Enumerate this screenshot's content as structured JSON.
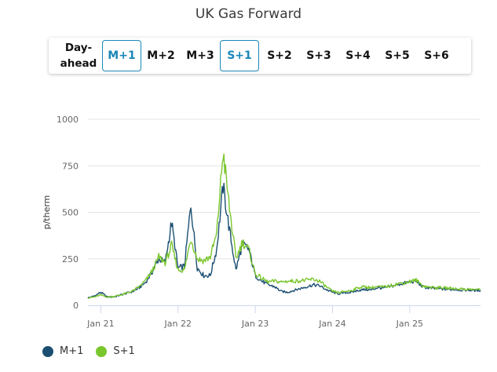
{
  "title": "UK Gas Forward",
  "tabs": [
    {
      "id": "dayahead",
      "label": "Day-\nahead",
      "active": false
    },
    {
      "id": "m1",
      "label": "M+1",
      "active": true
    },
    {
      "id": "m2",
      "label": "M+2",
      "active": false
    },
    {
      "id": "m3",
      "label": "M+3",
      "active": false
    },
    {
      "id": "s1",
      "label": "S+1",
      "active": true
    },
    {
      "id": "s2",
      "label": "S+2",
      "active": false
    },
    {
      "id": "s3",
      "label": "S+3",
      "active": false
    },
    {
      "id": "s4",
      "label": "S+4",
      "active": false
    },
    {
      "id": "s5",
      "label": "S+5",
      "active": false
    },
    {
      "id": "s6",
      "label": "S+6",
      "active": false
    }
  ],
  "legend": [
    {
      "name": "M+1",
      "color": "#1b4f72"
    },
    {
      "name": "S+1",
      "color": "#7ac62d"
    }
  ],
  "chart_data": {
    "type": "line",
    "title": "UK Gas Forward",
    "ylabel": "p/therm",
    "xlabel": "",
    "ylim": [
      0,
      1000
    ],
    "yticks": [
      0,
      250,
      500,
      750,
      1000
    ],
    "xticks": [
      "Jan 21",
      "Jan 22",
      "Jan 23",
      "Jan 24",
      "Jan 25"
    ],
    "xrange": [
      "2020-11",
      "2025-12"
    ],
    "grid": true,
    "legend_position": "bottom-left",
    "series": [
      {
        "name": "M+1",
        "color": "#1b4f72",
        "points": [
          [
            "2020-11",
            40
          ],
          [
            "2020-12",
            50
          ],
          [
            "2021-01",
            70
          ],
          [
            "2021-02",
            45
          ],
          [
            "2021-03",
            45
          ],
          [
            "2021-04",
            55
          ],
          [
            "2021-05",
            65
          ],
          [
            "2021-06",
            75
          ],
          [
            "2021-07",
            95
          ],
          [
            "2021-08",
            125
          ],
          [
            "2021-09",
            180
          ],
          [
            "2021-10",
            250
          ],
          [
            "2021-11",
            230
          ],
          [
            "2021-12",
            445
          ],
          [
            "2022-01",
            200
          ],
          [
            "2022-02",
            210
          ],
          [
            "2022-03",
            540
          ],
          [
            "2022-04",
            200
          ],
          [
            "2022-05",
            160
          ],
          [
            "2022-06",
            160
          ],
          [
            "2022-07",
            300
          ],
          [
            "2022-08",
            640
          ],
          [
            "2022-09",
            400
          ],
          [
            "2022-10",
            190
          ],
          [
            "2022-11",
            330
          ],
          [
            "2022-12",
            300
          ],
          [
            "2023-01",
            160
          ],
          [
            "2023-02",
            130
          ],
          [
            "2023-03",
            110
          ],
          [
            "2023-04",
            100
          ],
          [
            "2023-05",
            75
          ],
          [
            "2023-06",
            70
          ],
          [
            "2023-07",
            80
          ],
          [
            "2023-08",
            90
          ],
          [
            "2023-09",
            100
          ],
          [
            "2023-10",
            110
          ],
          [
            "2023-11",
            105
          ],
          [
            "2023-12",
            85
          ],
          [
            "2024-01",
            70
          ],
          [
            "2024-02",
            62
          ],
          [
            "2024-03",
            68
          ],
          [
            "2024-04",
            70
          ],
          [
            "2024-05",
            80
          ],
          [
            "2024-06",
            85
          ],
          [
            "2024-07",
            82
          ],
          [
            "2024-08",
            95
          ],
          [
            "2024-09",
            92
          ],
          [
            "2024-10",
            100
          ],
          [
            "2024-11",
            110
          ],
          [
            "2024-12",
            118
          ],
          [
            "2025-01",
            125
          ],
          [
            "2025-02",
            130
          ],
          [
            "2025-03",
            100
          ],
          [
            "2025-04",
            92
          ],
          [
            "2025-05",
            90
          ],
          [
            "2025-06",
            88
          ],
          [
            "2025-07",
            85
          ],
          [
            "2025-08",
            85
          ],
          [
            "2025-09",
            82
          ],
          [
            "2025-10",
            82
          ],
          [
            "2025-11",
            80
          ],
          [
            "2025-12",
            80
          ]
        ]
      },
      {
        "name": "S+1",
        "color": "#7ac62d",
        "points": [
          [
            "2020-11",
            40
          ],
          [
            "2020-12",
            45
          ],
          [
            "2021-01",
            55
          ],
          [
            "2021-02",
            45
          ],
          [
            "2021-03",
            48
          ],
          [
            "2021-04",
            55
          ],
          [
            "2021-05",
            65
          ],
          [
            "2021-06",
            78
          ],
          [
            "2021-07",
            100
          ],
          [
            "2021-08",
            135
          ],
          [
            "2021-09",
            185
          ],
          [
            "2021-10",
            260
          ],
          [
            "2021-11",
            230
          ],
          [
            "2021-12",
            320
          ],
          [
            "2022-01",
            190
          ],
          [
            "2022-02",
            190
          ],
          [
            "2022-03",
            360
          ],
          [
            "2022-04",
            250
          ],
          [
            "2022-05",
            240
          ],
          [
            "2022-06",
            260
          ],
          [
            "2022-07",
            380
          ],
          [
            "2022-08",
            825
          ],
          [
            "2022-09",
            520
          ],
          [
            "2022-10",
            250
          ],
          [
            "2022-11",
            340
          ],
          [
            "2022-12",
            300
          ],
          [
            "2023-01",
            170
          ],
          [
            "2023-02",
            145
          ],
          [
            "2023-03",
            125
          ],
          [
            "2023-04",
            130
          ],
          [
            "2023-05",
            125
          ],
          [
            "2023-06",
            130
          ],
          [
            "2023-07",
            130
          ],
          [
            "2023-08",
            132
          ],
          [
            "2023-09",
            135
          ],
          [
            "2023-10",
            140
          ],
          [
            "2023-11",
            130
          ],
          [
            "2023-12",
            100
          ],
          [
            "2024-01",
            75
          ],
          [
            "2024-02",
            68
          ],
          [
            "2024-03",
            75
          ],
          [
            "2024-04",
            80
          ],
          [
            "2024-05",
            95
          ],
          [
            "2024-06",
            100
          ],
          [
            "2024-07",
            95
          ],
          [
            "2024-08",
            100
          ],
          [
            "2024-09",
            98
          ],
          [
            "2024-10",
            105
          ],
          [
            "2024-11",
            115
          ],
          [
            "2024-12",
            120
          ],
          [
            "2025-01",
            128
          ],
          [
            "2025-02",
            135
          ],
          [
            "2025-03",
            105
          ],
          [
            "2025-04",
            98
          ],
          [
            "2025-05",
            95
          ],
          [
            "2025-06",
            95
          ],
          [
            "2025-07",
            92
          ],
          [
            "2025-08",
            90
          ],
          [
            "2025-09",
            88
          ],
          [
            "2025-10",
            86
          ],
          [
            "2025-11",
            85
          ],
          [
            "2025-12",
            84
          ]
        ]
      }
    ]
  }
}
